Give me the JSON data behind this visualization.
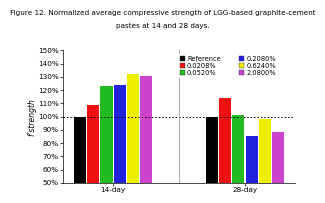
{
  "title_line1": "Figure 12. Normalized average compressive strength of LGG-based graphite-cement",
  "title_line2": "pastes at 14 and 28 days.",
  "ylabel": "f’strength",
  "groups": [
    "14-day",
    "28-day"
  ],
  "series_labels": [
    "Reference",
    "0.0208%",
    "0.0520%",
    "0.2080%",
    "0.6240%",
    "2.0800%"
  ],
  "series_colors": [
    "#000000",
    "#ee1111",
    "#22bb22",
    "#2222dd",
    "#eeee00",
    "#cc44cc"
  ],
  "values": [
    [
      100,
      109,
      123,
      124,
      132,
      131
    ],
    [
      100,
      114,
      101,
      85,
      98,
      88
    ]
  ],
  "ylim": [
    50,
    150
  ],
  "yticks": [
    50,
    60,
    70,
    80,
    90,
    100,
    110,
    120,
    130,
    140,
    150
  ],
  "ytick_labels": [
    "50%",
    "60%",
    "70%",
    "80%",
    "90%",
    "100%",
    "110%",
    "120%",
    "130%",
    "140%",
    "150%"
  ],
  "hline_y": 100,
  "background_color": "#ffffff",
  "plot_bg_color": "#ffffff",
  "title_fontsize": 5.2,
  "axis_fontsize": 5.5,
  "tick_fontsize": 5.2,
  "legend_fontsize": 4.8,
  "bar_width": 0.1,
  "group_centers": [
    0.0,
    1.0
  ]
}
